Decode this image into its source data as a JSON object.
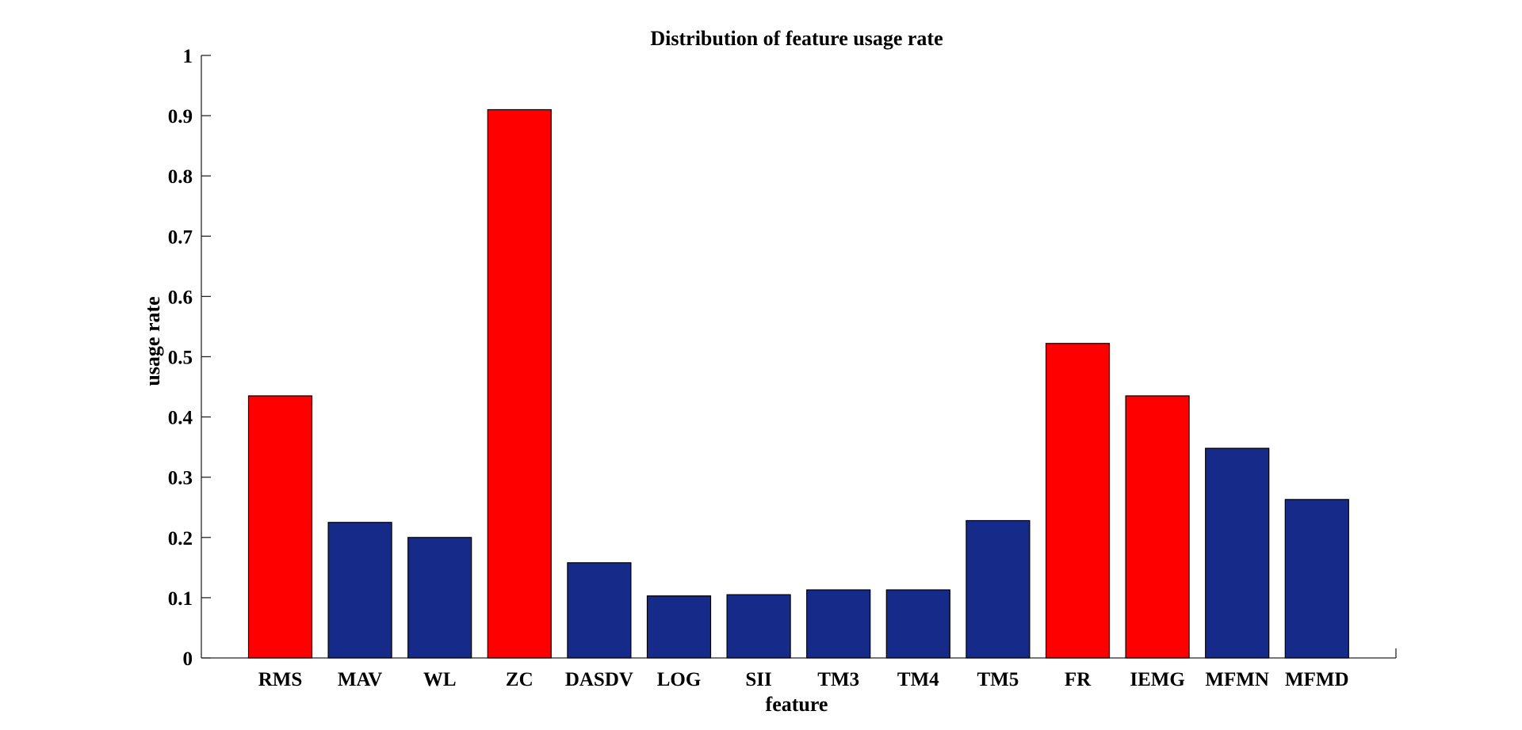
{
  "chart_data": {
    "type": "bar",
    "title": "Distribution of feature usage rate",
    "xlabel": "feature",
    "ylabel": "usage rate",
    "categories": [
      "RMS",
      "MAV",
      "WL",
      "ZC",
      "DASDV",
      "LOG",
      "SII",
      "TM3",
      "TM4",
      "TM5",
      "FR",
      "IEMG",
      "MFMN",
      "MFMD"
    ],
    "values": [
      0.435,
      0.225,
      0.2,
      0.91,
      0.158,
      0.103,
      0.105,
      0.113,
      0.113,
      0.228,
      0.522,
      0.435,
      0.348,
      0.263
    ],
    "highlighted": [
      "RMS",
      "ZC",
      "FR",
      "IEMG"
    ],
    "ylim": [
      0,
      1
    ],
    "yticks": [
      "0",
      "0.1",
      "0.2",
      "0.3",
      "0.4",
      "0.5",
      "0.6",
      "0.7",
      "0.8",
      "0.9",
      "1"
    ],
    "grid": false,
    "colors": {
      "highlight": "#ff0000",
      "normal": "#162a8a",
      "axis": "#262626"
    }
  }
}
